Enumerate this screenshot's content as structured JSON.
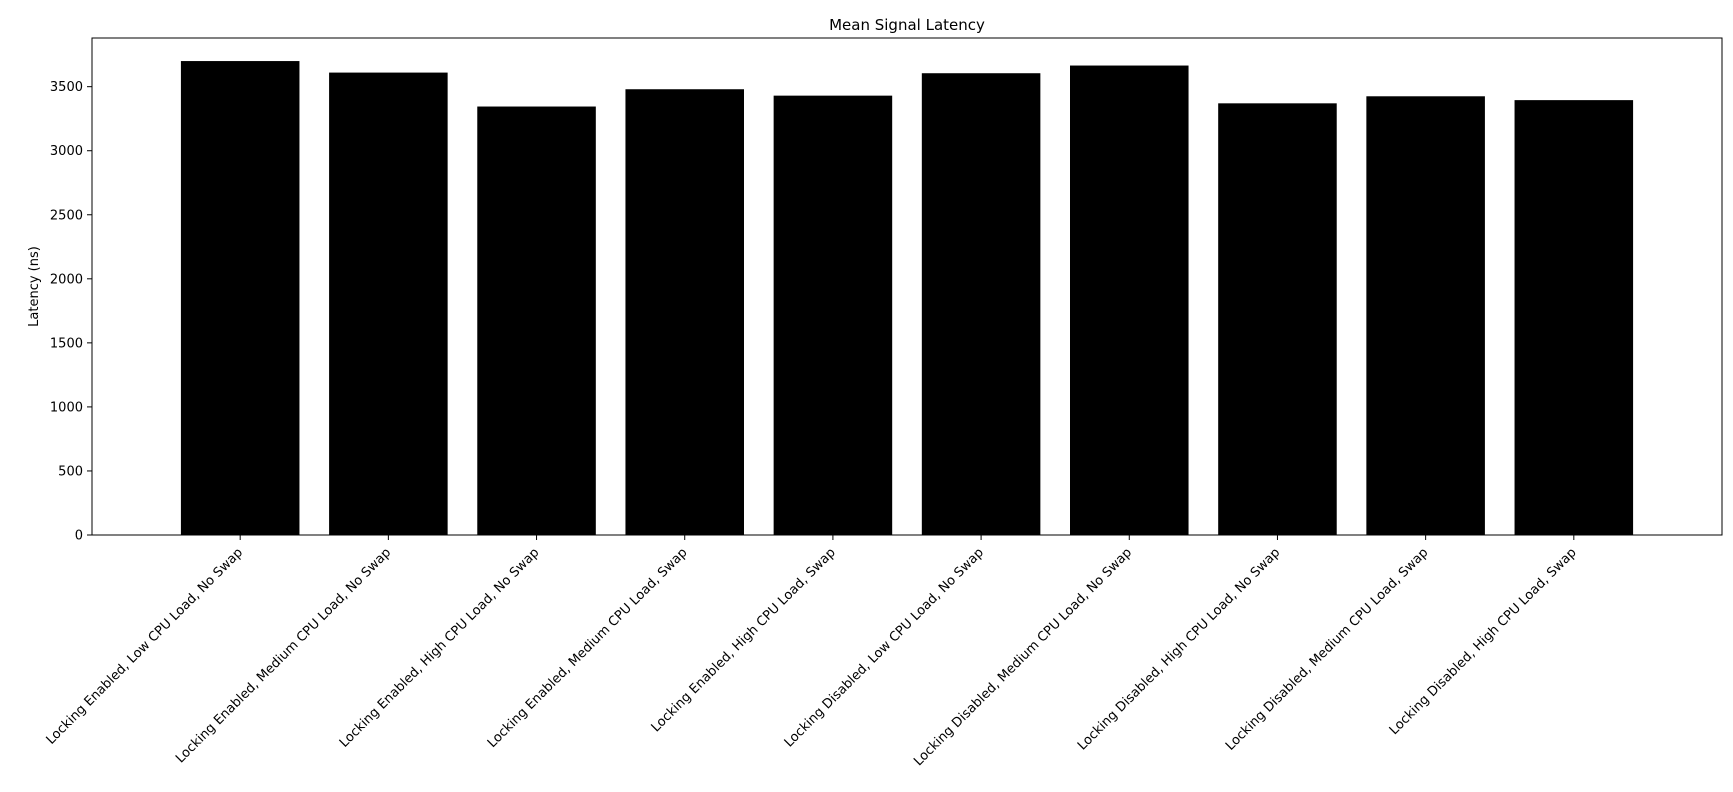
{
  "chart_data": {
    "type": "bar",
    "title": "Mean Signal Latency",
    "xlabel": "",
    "ylabel": "Latency (ns)",
    "categories": [
      "Locking Enabled, Low CPU Load, No Swap",
      "Locking Enabled, Medium CPU Load, No Swap",
      "Locking Enabled, High CPU Load, No Swap",
      "Locking Enabled, Medium CPU Load, Swap",
      "Locking Enabled, High CPU Load, Swap",
      "Locking Disabled, Low CPU Load, No Swap",
      "Locking Disabled, Medium CPU Load, No Swap",
      "Locking Disabled, High CPU Load, No Swap",
      "Locking Disabled, Medium CPU Load, Swap",
      "Locking Disabled, High CPU Load, Swap"
    ],
    "values": [
      3700,
      3610,
      3345,
      3480,
      3430,
      3605,
      3665,
      3370,
      3425,
      3395
    ],
    "ylim": [
      0,
      3880
    ],
    "yticks": [
      0,
      500,
      1000,
      1500,
      2000,
      2500,
      3000,
      3500
    ],
    "bar_color": "#000000",
    "grid": false,
    "legend": "none"
  }
}
